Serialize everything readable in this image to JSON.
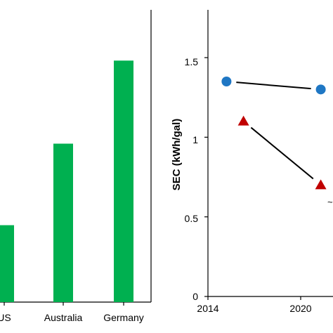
{
  "chart_data": [
    {
      "type": "bar",
      "categories": [
        "US",
        "Australia",
        "Germany"
      ],
      "category_tick_labels": [
        "US",
        "Australia",
        "Germany"
      ],
      "values": [
        0.5,
        1.03,
        1.57
      ],
      "ylim": [
        0,
        1.9
      ],
      "color": "#00b050",
      "grid": false
    },
    {
      "type": "scatter",
      "ylabel": "SEC (kWh/gal)",
      "xlim": [
        2014,
        2024
      ],
      "ylim": [
        0,
        1.8
      ],
      "x_ticks": [
        2014,
        2020
      ],
      "x_tick_labels": [
        "2014",
        "2020"
      ],
      "y_ticks": [
        0,
        0.5,
        1,
        1.5
      ],
      "y_tick_labels": [
        "0",
        "0.5",
        "1",
        "1.5"
      ],
      "grid": false,
      "series": [
        {
          "marker": "circle",
          "color": "#1f77c4",
          "x": [
            2015.2,
            2021.3
          ],
          "y": [
            1.35,
            1.3
          ],
          "connector": "line"
        },
        {
          "marker": "triangle",
          "color": "#c00000",
          "x": [
            2016.3,
            2021.3
          ],
          "y": [
            1.1,
            0.7
          ],
          "connector": "line"
        }
      ]
    }
  ]
}
